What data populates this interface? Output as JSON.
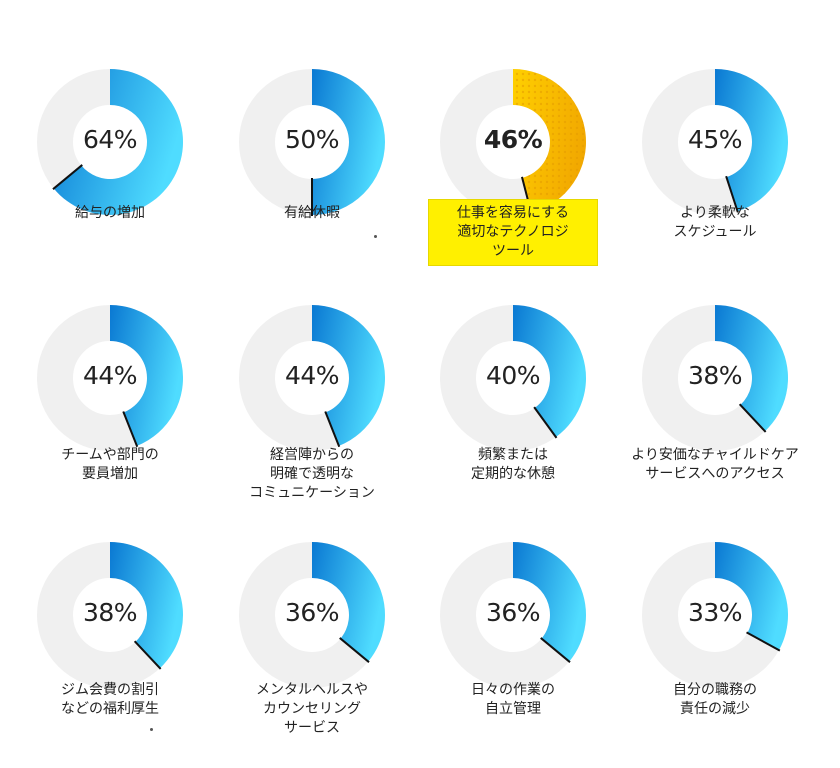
{
  "chart_data": {
    "type": "donut",
    "unit": "%",
    "highlight_color": "#fff000",
    "ring_track_color": "#f0f0f0",
    "blue_gradient": [
      "#0a78d2",
      "#4fdcff"
    ],
    "yellow_gradient": [
      "#ffd000",
      "#f2a900"
    ],
    "items": [
      {
        "value": 64,
        "value_label": "64%",
        "label_lines": [
          "給与の増加"
        ],
        "highlight": false
      },
      {
        "value": 50,
        "value_label": "50%",
        "label_lines": [
          "有給休暇"
        ],
        "highlight": false
      },
      {
        "value": 46,
        "value_label": "46%",
        "label_lines": [
          "仕事を容易にする",
          "適切なテクノロジ",
          "ツール"
        ],
        "highlight": true
      },
      {
        "value": 45,
        "value_label": "45%",
        "label_lines": [
          "より柔軟な",
          "スケジュール"
        ],
        "highlight": false
      },
      {
        "value": 44,
        "value_label": "44%",
        "label_lines": [
          "チームや部門の",
          "要員増加"
        ],
        "highlight": false
      },
      {
        "value": 44,
        "value_label": "44%",
        "label_lines": [
          "経営陣からの",
          "明確で透明な",
          "コミュニケーション"
        ],
        "highlight": false
      },
      {
        "value": 40,
        "value_label": "40%",
        "label_lines": [
          "頻繁または",
          "定期的な休憩"
        ],
        "highlight": false
      },
      {
        "value": 38,
        "value_label": "38%",
        "label_lines": [
          "より安価なチャイルドケア",
          "サービスへのアクセス"
        ],
        "highlight": false
      },
      {
        "value": 38,
        "value_label": "38%",
        "label_lines": [
          "ジム会費の割引",
          "などの福利厚生"
        ],
        "highlight": false
      },
      {
        "value": 36,
        "value_label": "36%",
        "label_lines": [
          "メンタルヘルスや",
          "カウンセリング",
          "サービス"
        ],
        "highlight": false
      },
      {
        "value": 36,
        "value_label": "36%",
        "label_lines": [
          "日々の作業の",
          "自立管理"
        ],
        "highlight": false
      },
      {
        "value": 33,
        "value_label": "33%",
        "label_lines": [
          "自分の職務の",
          "責任の減少"
        ],
        "highlight": false
      }
    ]
  }
}
